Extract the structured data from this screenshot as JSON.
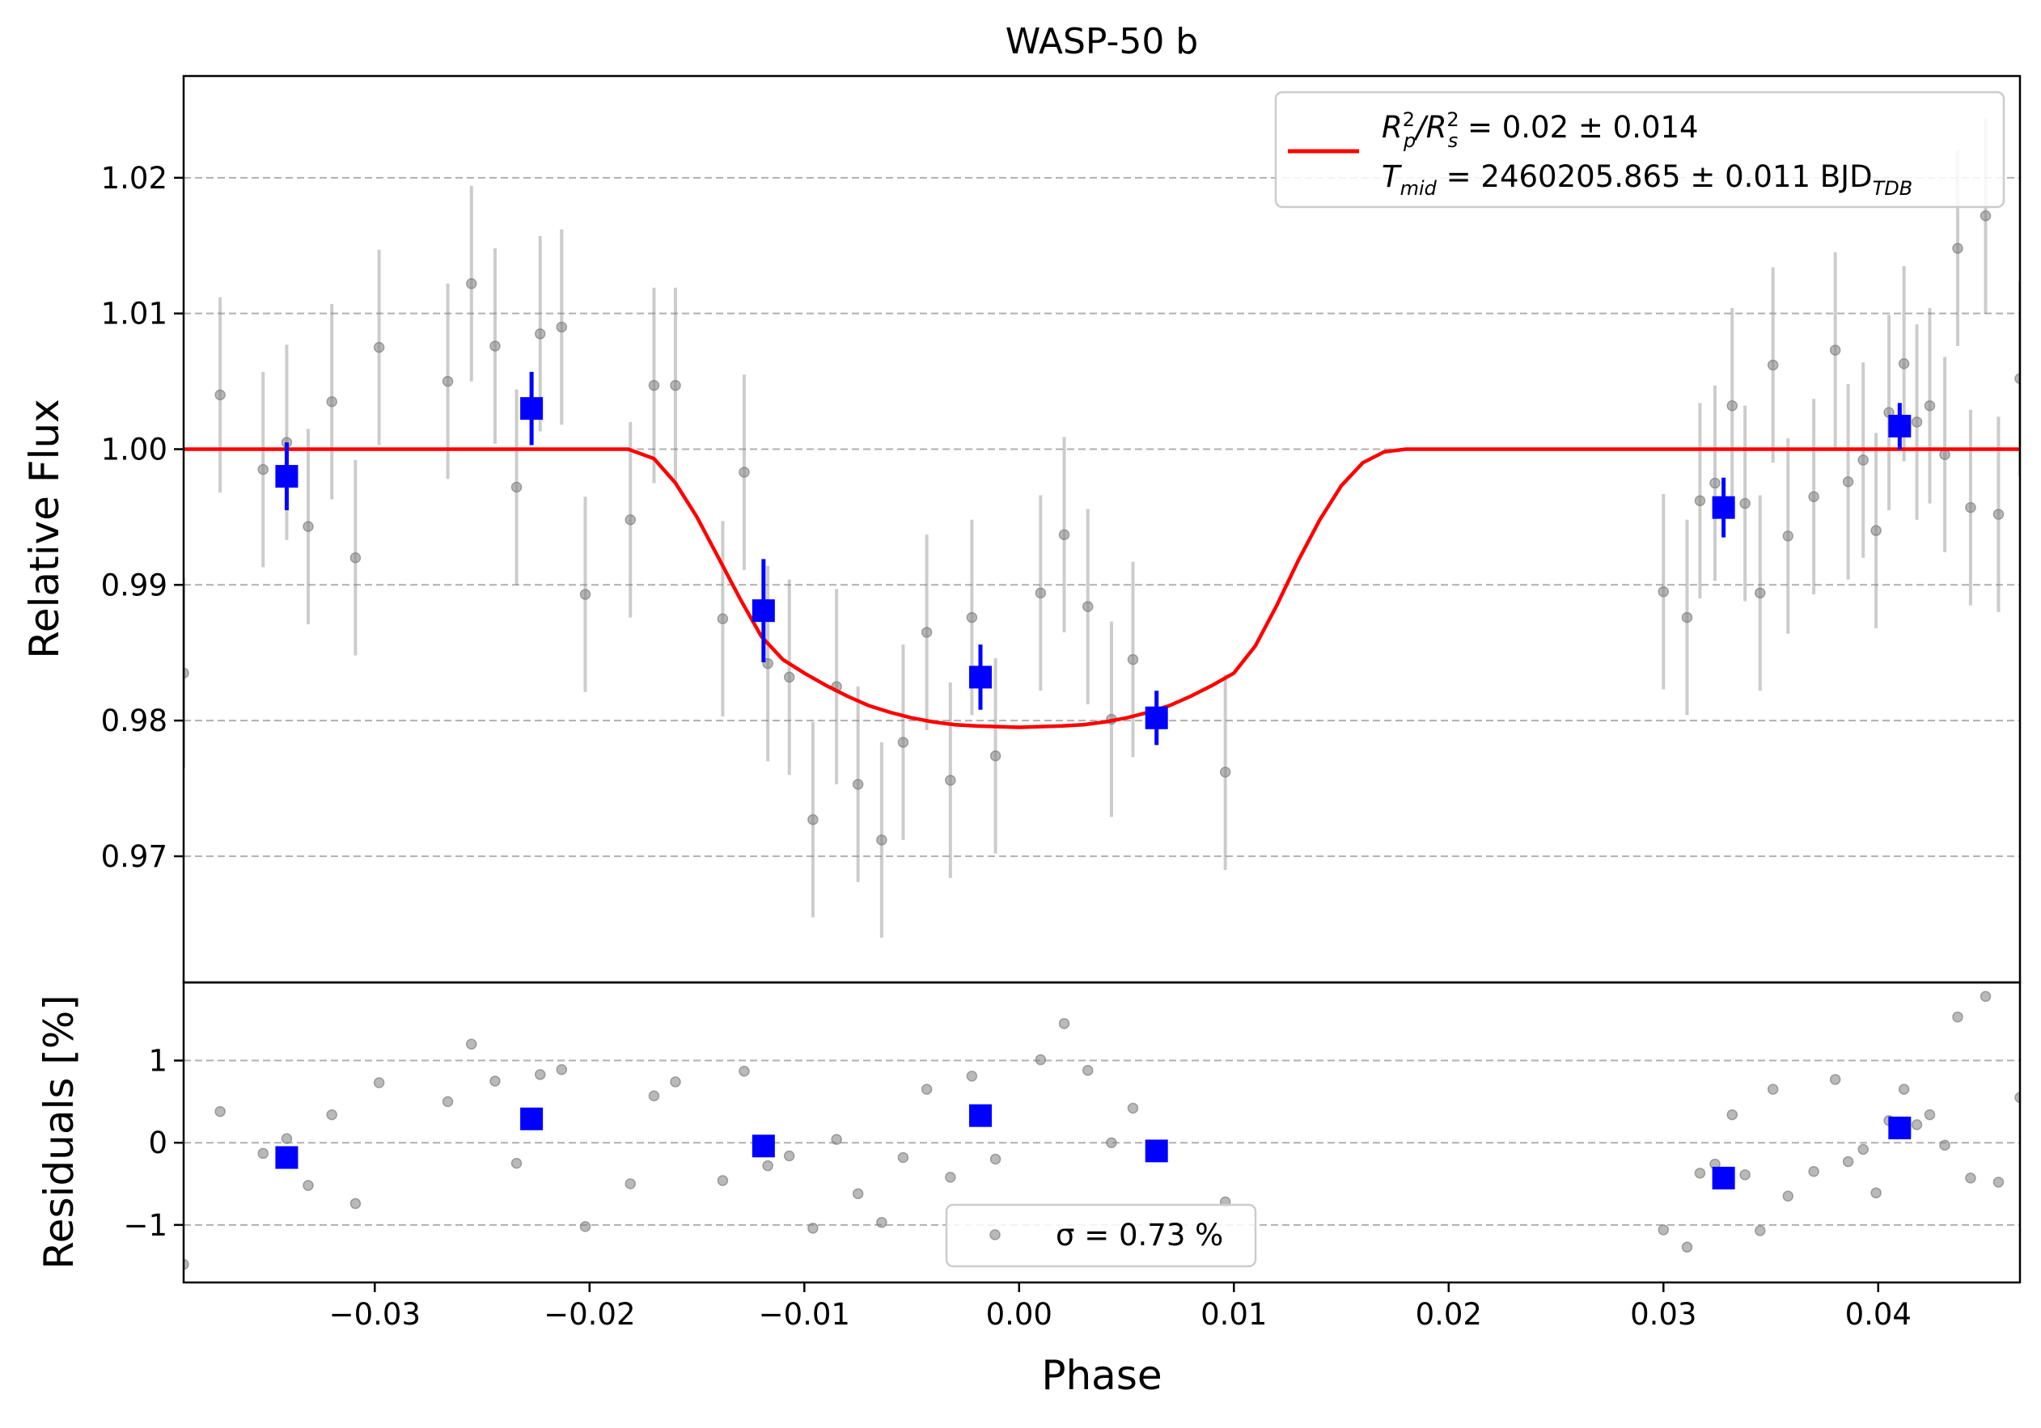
{
  "chart_data": [
    {
      "type": "scatter",
      "title": "WASP-50 b",
      "ylabel": "Relative Flux",
      "xlabel": "",
      "xlim": [
        -0.0389,
        0.0466
      ],
      "ylim": [
        0.9607,
        1.0275
      ],
      "yticks": [
        0.97,
        0.98,
        0.99,
        1.0,
        1.01,
        1.02
      ],
      "ytick_labels": [
        "0.97",
        "0.98",
        "0.99",
        "1.00",
        "1.01",
        "1.02"
      ],
      "grid": "horizontal dashed",
      "legend": {
        "placement": "top-right",
        "line1_main": "R",
        "line1_sup1": "2",
        "line1_sub1": "p",
        "line1_slash": "/R",
        "line1_sup2": "2",
        "line1_sub2": "s",
        "line1_rest": " = 0.02 ± 0.014",
        "line2_main": "T",
        "line2_sub": "mid",
        "line2_rest": " = 2460205.865 ± 0.011 BJD",
        "line2_sub2": "TDB"
      },
      "series": [
        {
          "color": "#808080",
          "marker": "circle",
          "points": [
            {
              "x": -0.0389,
              "y": 0.9835,
              "err": 0.007
            },
            {
              "x": -0.0372,
              "y": 1.004,
              "err": 0.0072
            },
            {
              "x": -0.0352,
              "y": 0.9985,
              "err": 0.0072
            },
            {
              "x": -0.0341,
              "y": 1.0005,
              "err": 0.0072
            },
            {
              "x": -0.0331,
              "y": 0.9943,
              "err": 0.0072
            },
            {
              "x": -0.032,
              "y": 1.0035,
              "err": 0.0072
            },
            {
              "x": -0.0309,
              "y": 0.992,
              "err": 0.0072
            },
            {
              "x": -0.0298,
              "y": 1.0075,
              "err": 0.0072
            },
            {
              "x": -0.0266,
              "y": 1.005,
              "err": 0.0072
            },
            {
              "x": -0.0255,
              "y": 1.0122,
              "err": 0.0072
            },
            {
              "x": -0.0244,
              "y": 1.0076,
              "err": 0.0072
            },
            {
              "x": -0.0234,
              "y": 0.9972,
              "err": 0.0072
            },
            {
              "x": -0.0223,
              "y": 1.0085,
              "err": 0.0072
            },
            {
              "x": -0.0213,
              "y": 1.009,
              "err": 0.0072
            },
            {
              "x": -0.0202,
              "y": 0.9893,
              "err": 0.0072
            },
            {
              "x": -0.0181,
              "y": 0.9948,
              "err": 0.0072
            },
            {
              "x": -0.017,
              "y": 1.0047,
              "err": 0.0072
            },
            {
              "x": -0.016,
              "y": 1.0047,
              "err": 0.0072
            },
            {
              "x": -0.0138,
              "y": 0.9875,
              "err": 0.0072
            },
            {
              "x": -0.0128,
              "y": 0.9983,
              "err": 0.0072
            },
            {
              "x": -0.0117,
              "y": 0.9842,
              "err": 0.0072
            },
            {
              "x": -0.0107,
              "y": 0.9832,
              "err": 0.0072
            },
            {
              "x": -0.0096,
              "y": 0.9727,
              "err": 0.0072
            },
            {
              "x": -0.0085,
              "y": 0.9825,
              "err": 0.0072
            },
            {
              "x": -0.0075,
              "y": 0.9753,
              "err": 0.0072
            },
            {
              "x": -0.0064,
              "y": 0.9712,
              "err": 0.0072
            },
            {
              "x": -0.0054,
              "y": 0.9784,
              "err": 0.0072
            },
            {
              "x": -0.0043,
              "y": 0.9865,
              "err": 0.0072
            },
            {
              "x": -0.0032,
              "y": 0.9756,
              "err": 0.0072
            },
            {
              "x": -0.0022,
              "y": 0.9876,
              "err": 0.0072
            },
            {
              "x": -0.0011,
              "y": 0.9774,
              "err": 0.0072
            },
            {
              "x": 0.001,
              "y": 0.9894,
              "err": 0.0072
            },
            {
              "x": 0.0021,
              "y": 0.9937,
              "err": 0.0072
            },
            {
              "x": 0.0032,
              "y": 0.9884,
              "err": 0.0072
            },
            {
              "x": 0.0043,
              "y": 0.9801,
              "err": 0.0072
            },
            {
              "x": 0.0053,
              "y": 0.9845,
              "err": 0.0072
            },
            {
              "x": 0.0096,
              "y": 0.9762,
              "err": 0.0072
            },
            {
              "x": 0.03,
              "y": 0.9895,
              "err": 0.0072
            },
            {
              "x": 0.0311,
              "y": 0.9876,
              "err": 0.0072
            },
            {
              "x": 0.0317,
              "y": 0.9962,
              "err": 0.0072
            },
            {
              "x": 0.0324,
              "y": 0.9975,
              "err": 0.0072
            },
            {
              "x": 0.0332,
              "y": 1.0032,
              "err": 0.0072
            },
            {
              "x": 0.0338,
              "y": 0.996,
              "err": 0.0072
            },
            {
              "x": 0.0345,
              "y": 0.9894,
              "err": 0.0072
            },
            {
              "x": 0.0351,
              "y": 1.0062,
              "err": 0.0072
            },
            {
              "x": 0.0358,
              "y": 0.9936,
              "err": 0.0072
            },
            {
              "x": 0.037,
              "y": 0.9965,
              "err": 0.0072
            },
            {
              "x": 0.038,
              "y": 1.0073,
              "err": 0.0072
            },
            {
              "x": 0.0386,
              "y": 0.9976,
              "err": 0.0072
            },
            {
              "x": 0.0393,
              "y": 0.9992,
              "err": 0.0072
            },
            {
              "x": 0.0399,
              "y": 0.994,
              "err": 0.0072
            },
            {
              "x": 0.0405,
              "y": 1.0027,
              "err": 0.0072
            },
            {
              "x": 0.0412,
              "y": 1.0063,
              "err": 0.0072
            },
            {
              "x": 0.0418,
              "y": 1.002,
              "err": 0.0072
            },
            {
              "x": 0.0424,
              "y": 1.0032,
              "err": 0.0072
            },
            {
              "x": 0.0431,
              "y": 0.9996,
              "err": 0.0072
            },
            {
              "x": 0.0437,
              "y": 1.0148,
              "err": 0.0072
            },
            {
              "x": 0.0443,
              "y": 0.9957,
              "err": 0.0072
            },
            {
              "x": 0.045,
              "y": 1.0172,
              "err": 0.0072
            },
            {
              "x": 0.0456,
              "y": 0.9952,
              "err": 0.0072
            },
            {
              "x": 0.0466,
              "y": 1.0052,
              "err": 0.0072
            }
          ]
        },
        {
          "color": "#0000ff",
          "marker": "square",
          "points": [
            {
              "x": -0.0341,
              "y": 0.998,
              "err": 0.0025
            },
            {
              "x": -0.0227,
              "y": 1.003,
              "err": 0.0027
            },
            {
              "x": -0.0119,
              "y": 0.9881,
              "err": 0.0038
            },
            {
              "x": -0.0018,
              "y": 0.9832,
              "err": 0.0024
            },
            {
              "x": 0.0064,
              "y": 0.9802,
              "err": 0.002
            },
            {
              "x": 0.0328,
              "y": 0.9957,
              "err": 0.0022
            },
            {
              "x": 0.041,
              "y": 1.0017,
              "err": 0.0017
            }
          ]
        },
        {
          "color": "#ff0000",
          "type": "line",
          "points": [
            {
              "x": -0.0389,
              "y": 1.0
            },
            {
              "x": -0.0182,
              "y": 1.0
            },
            {
              "x": -0.017,
              "y": 0.9993
            },
            {
              "x": -0.016,
              "y": 0.9975
            },
            {
              "x": -0.015,
              "y": 0.995
            },
            {
              "x": -0.014,
              "y": 0.992
            },
            {
              "x": -0.013,
              "y": 0.989
            },
            {
              "x": -0.012,
              "y": 0.9862
            },
            {
              "x": -0.011,
              "y": 0.9845
            },
            {
              "x": -0.01,
              "y": 0.9835
            },
            {
              "x": -0.009,
              "y": 0.9826
            },
            {
              "x": -0.008,
              "y": 0.9818
            },
            {
              "x": -0.007,
              "y": 0.9811
            },
            {
              "x": -0.006,
              "y": 0.9806
            },
            {
              "x": -0.005,
              "y": 0.9802
            },
            {
              "x": -0.004,
              "y": 0.9799
            },
            {
              "x": -0.003,
              "y": 0.9797
            },
            {
              "x": -0.002,
              "y": 0.9796
            },
            {
              "x": 0.0,
              "y": 0.9795
            },
            {
              "x": 0.002,
              "y": 0.9796
            },
            {
              "x": 0.003,
              "y": 0.9797
            },
            {
              "x": 0.004,
              "y": 0.9799
            },
            {
              "x": 0.005,
              "y": 0.9802
            },
            {
              "x": 0.006,
              "y": 0.9806
            },
            {
              "x": 0.007,
              "y": 0.9811
            },
            {
              "x": 0.008,
              "y": 0.9818
            },
            {
              "x": 0.009,
              "y": 0.9826
            },
            {
              "x": 0.01,
              "y": 0.9835
            },
            {
              "x": 0.011,
              "y": 0.9855
            },
            {
              "x": 0.012,
              "y": 0.9885
            },
            {
              "x": 0.013,
              "y": 0.9918
            },
            {
              "x": 0.014,
              "y": 0.9948
            },
            {
              "x": 0.015,
              "y": 0.9973
            },
            {
              "x": 0.016,
              "y": 0.999
            },
            {
              "x": 0.017,
              "y": 0.9998
            },
            {
              "x": 0.018,
              "y": 1.0
            },
            {
              "x": 0.0466,
              "y": 1.0
            }
          ]
        }
      ]
    },
    {
      "type": "scatter",
      "title": "",
      "ylabel": "Residuals [%]",
      "xlabel": "Phase",
      "xlim": [
        -0.0389,
        0.0466
      ],
      "ylim": [
        -1.7,
        1.95
      ],
      "yticks": [
        -1,
        0,
        1
      ],
      "ytick_labels": [
        "−1",
        "0",
        "1"
      ],
      "xticks": [
        -0.03,
        -0.02,
        -0.01,
        0.0,
        0.01,
        0.02,
        0.03,
        0.04
      ],
      "xtick_labels": [
        "−0.03",
        "−0.02",
        "−0.01",
        "0.00",
        "0.01",
        "0.02",
        "0.03",
        "0.04"
      ],
      "grid": "horizontal dashed",
      "legend": {
        "placement": "bottom-center",
        "text": "σ = 0.73 %"
      },
      "series": [
        {
          "color": "#808080",
          "marker": "circle",
          "points": [
            {
              "x": -0.0389,
              "y": -1.48
            },
            {
              "x": -0.0372,
              "y": 0.38
            },
            {
              "x": -0.0352,
              "y": -0.13
            },
            {
              "x": -0.0341,
              "y": 0.05
            },
            {
              "x": -0.0331,
              "y": -0.52
            },
            {
              "x": -0.032,
              "y": 0.34
            },
            {
              "x": -0.0309,
              "y": -0.74
            },
            {
              "x": -0.0298,
              "y": 0.73
            },
            {
              "x": -0.0266,
              "y": 0.5
            },
            {
              "x": -0.0255,
              "y": 1.2
            },
            {
              "x": -0.0244,
              "y": 0.75
            },
            {
              "x": -0.0234,
              "y": -0.25
            },
            {
              "x": -0.0223,
              "y": 0.83
            },
            {
              "x": -0.0213,
              "y": 0.89
            },
            {
              "x": -0.0202,
              "y": -1.02
            },
            {
              "x": -0.0181,
              "y": -0.5
            },
            {
              "x": -0.017,
              "y": 0.57
            },
            {
              "x": -0.016,
              "y": 0.74
            },
            {
              "x": -0.0138,
              "y": -0.46
            },
            {
              "x": -0.0128,
              "y": 0.87
            },
            {
              "x": -0.0117,
              "y": -0.28
            },
            {
              "x": -0.0107,
              "y": -0.16
            },
            {
              "x": -0.0096,
              "y": -1.04
            },
            {
              "x": -0.0085,
              "y": 0.04
            },
            {
              "x": -0.0075,
              "y": -0.62
            },
            {
              "x": -0.0064,
              "y": -0.97
            },
            {
              "x": -0.0054,
              "y": -0.18
            },
            {
              "x": -0.0043,
              "y": 0.65
            },
            {
              "x": -0.0032,
              "y": -0.42
            },
            {
              "x": -0.0022,
              "y": 0.81
            },
            {
              "x": -0.0011,
              "y": -0.2
            },
            {
              "x": 0.001,
              "y": 1.01
            },
            {
              "x": 0.0021,
              "y": 1.45
            },
            {
              "x": 0.0032,
              "y": 0.88
            },
            {
              "x": 0.0043,
              "y": 0.0
            },
            {
              "x": 0.0053,
              "y": 0.42
            },
            {
              "x": 0.0096,
              "y": -0.72
            },
            {
              "x": 0.03,
              "y": -1.06
            },
            {
              "x": 0.0311,
              "y": -1.27
            },
            {
              "x": 0.0317,
              "y": -0.37
            },
            {
              "x": 0.0324,
              "y": -0.26
            },
            {
              "x": 0.0332,
              "y": 0.34
            },
            {
              "x": 0.0338,
              "y": -0.39
            },
            {
              "x": 0.0345,
              "y": -1.07
            },
            {
              "x": 0.0351,
              "y": 0.65
            },
            {
              "x": 0.0358,
              "y": -0.65
            },
            {
              "x": 0.037,
              "y": -0.35
            },
            {
              "x": 0.038,
              "y": 0.77
            },
            {
              "x": 0.0386,
              "y": -0.23
            },
            {
              "x": 0.0393,
              "y": -0.08
            },
            {
              "x": 0.0399,
              "y": -0.61
            },
            {
              "x": 0.0405,
              "y": 0.27
            },
            {
              "x": 0.0412,
              "y": 0.65
            },
            {
              "x": 0.0418,
              "y": 0.22
            },
            {
              "x": 0.0424,
              "y": 0.34
            },
            {
              "x": 0.0431,
              "y": -0.03
            },
            {
              "x": 0.0437,
              "y": 1.53
            },
            {
              "x": 0.0443,
              "y": -0.43
            },
            {
              "x": 0.045,
              "y": 1.78
            },
            {
              "x": 0.0456,
              "y": -0.48
            },
            {
              "x": 0.0466,
              "y": 0.55
            }
          ]
        },
        {
          "color": "#0000ff",
          "marker": "square",
          "points": [
            {
              "x": -0.0341,
              "y": -0.18
            },
            {
              "x": -0.0227,
              "y": 0.29
            },
            {
              "x": -0.0119,
              "y": -0.04
            },
            {
              "x": -0.0018,
              "y": 0.33
            },
            {
              "x": 0.0064,
              "y": -0.1
            },
            {
              "x": 0.0328,
              "y": -0.43
            },
            {
              "x": 0.041,
              "y": 0.18
            }
          ]
        }
      ]
    }
  ]
}
